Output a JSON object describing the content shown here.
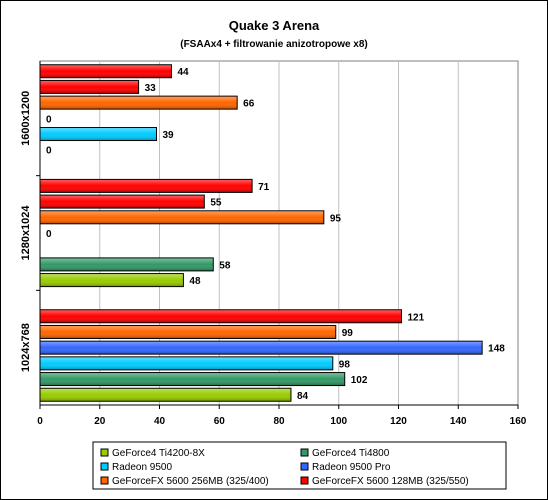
{
  "chart_data": {
    "type": "bar",
    "orientation": "horizontal",
    "title": "Quake 3 Arena",
    "subtitle": "(FSAAx4 + filtrowanie anizotropowe x8)",
    "categories": [
      "1600x1200",
      "1280x1024",
      "1024x768"
    ],
    "xlim": [
      0,
      160
    ],
    "xticks": [
      0,
      20,
      40,
      60,
      80,
      100,
      120,
      140,
      160
    ],
    "series": [
      {
        "name": "GeForce4 Ti4200-8X",
        "color": "#99cc00",
        "values": [
          null,
          48,
          84
        ]
      },
      {
        "name": "GeForce4 Ti4800",
        "color": "#339966",
        "values": [
          0,
          58,
          102
        ]
      },
      {
        "name": "Radeon 9500",
        "color": "#00ccff",
        "values": [
          39,
          null,
          98
        ]
      },
      {
        "name": "Radeon 9500 Pro",
        "color": "#3366ff",
        "values": [
          0,
          0,
          148
        ]
      },
      {
        "name": "GeForceFX 5600 256MB (325/400)",
        "color": "#ff6600",
        "values": [
          66,
          95,
          99
        ]
      },
      {
        "name": "GeForceFX 5600 128MB (325/550)",
        "color": "#ff0000",
        "values": [
          33,
          55,
          121
        ]
      },
      {
        "name": "",
        "color": "#ff0000",
        "values": [
          44,
          71,
          null
        ]
      }
    ],
    "grid": "vertical",
    "legend_position": "bottom"
  }
}
